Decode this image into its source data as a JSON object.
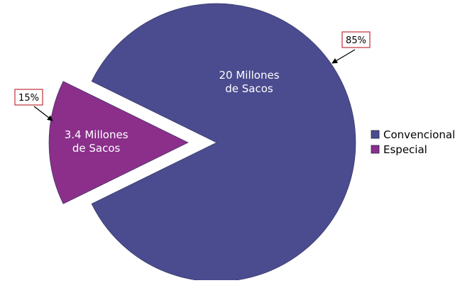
{
  "chart_data": {
    "type": "pie",
    "title": "",
    "slices": [
      {
        "name": "Convencional",
        "value": 20,
        "value_label": "20 Millones de Sacos",
        "label_lines": [
          "20 Millones",
          "de Sacos"
        ],
        "percent_label": "85%",
        "color": "#4b4b8f",
        "exploded": false
      },
      {
        "name": "Especial",
        "value": 3.4,
        "value_label": "3.4 Millones de Sacos",
        "label_lines": [
          "3.4 Millones",
          "de Sacos"
        ],
        "percent_label": "15%",
        "color": "#8b2f8b",
        "exploded": true
      }
    ],
    "legend": {
      "position": "right",
      "entries": [
        "Convencional",
        "Especial"
      ]
    },
    "callout_border_color": "#c0313a"
  }
}
